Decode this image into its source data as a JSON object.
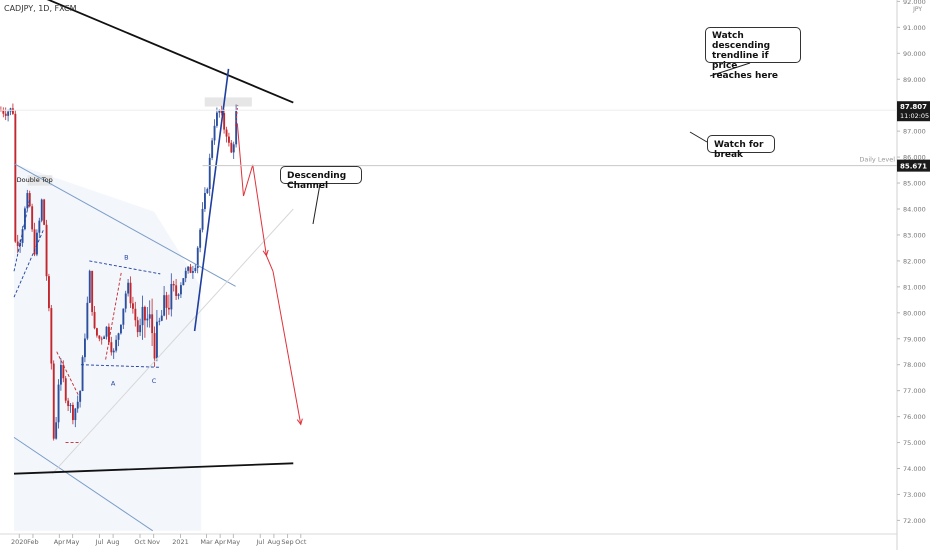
{
  "header": {
    "symbol_label": "CADJPY, 1D, FXCM"
  },
  "colors": {
    "bull": "#2c4f9e",
    "bear": "#c2272d",
    "channel": "#7a9cc8",
    "black": "#111111",
    "forecast": "#e0313a",
    "trend_blue": "#1f3fa0",
    "price_tag": "#1a1a1a"
  },
  "chart_data": {
    "type": "candlestick",
    "symbol": "CADJPY",
    "timeframe": "1D",
    "exchange": "FXCM",
    "currency_label": "JPY",
    "ylim": [
      71.6,
      92.4
    ],
    "y_ticks": [
      "72.000",
      "73.000",
      "74.000",
      "75.000",
      "76.000",
      "77.000",
      "78.000",
      "79.000",
      "80.000",
      "81.000",
      "82.000",
      "83.000",
      "84.000",
      "85.000",
      "86.000",
      "87.000",
      "88.000",
      "89.000",
      "90.000",
      "91.000",
      "92.000"
    ],
    "x_ticks": [
      "2020",
      "Feb",
      "Apr",
      "May",
      "Jul",
      "Aug",
      "Oct",
      "Nov",
      "2021",
      "Mar",
      "Apr",
      "May",
      "Jul",
      "Aug",
      "Sep",
      "Oct"
    ],
    "price_path": [
      {
        "date": "2019-12-20",
        "close": 82.7
      },
      {
        "date": "2020-01-02",
        "close": 82.9
      },
      {
        "date": "2020-01-10",
        "close": 83.8
      },
      {
        "date": "2020-01-20",
        "close": 84.6
      },
      {
        "date": "2020-01-27",
        "close": 83.2
      },
      {
        "date": "2020-02-03",
        "close": 82.4
      },
      {
        "date": "2020-02-12",
        "close": 83.3
      },
      {
        "date": "2020-02-21",
        "close": 84.6
      },
      {
        "date": "2020-03-02",
        "close": 81.0
      },
      {
        "date": "2020-03-10",
        "close": 79.0
      },
      {
        "date": "2020-03-16",
        "close": 75.5
      },
      {
        "date": "2020-03-19",
        "close": 74.6
      },
      {
        "date": "2020-03-26",
        "close": 77.2
      },
      {
        "date": "2020-04-03",
        "close": 77.8
      },
      {
        "date": "2020-04-15",
        "close": 76.7
      },
      {
        "date": "2020-04-30",
        "close": 76.1
      },
      {
        "date": "2020-05-15",
        "close": 76.8
      },
      {
        "date": "2020-05-29",
        "close": 79.6
      },
      {
        "date": "2020-06-08",
        "close": 81.7
      },
      {
        "date": "2020-06-15",
        "close": 79.3
      },
      {
        "date": "2020-06-29",
        "close": 79.0
      },
      {
        "date": "2020-07-15",
        "close": 79.4
      },
      {
        "date": "2020-07-31",
        "close": 78.4
      },
      {
        "date": "2020-08-14",
        "close": 79.5
      },
      {
        "date": "2020-08-31",
        "close": 81.1
      },
      {
        "date": "2020-09-15",
        "close": 80.0
      },
      {
        "date": "2020-09-25",
        "close": 79.2
      },
      {
        "date": "2020-10-09",
        "close": 79.8
      },
      {
        "date": "2020-10-23",
        "close": 79.6
      },
      {
        "date": "2020-11-02",
        "close": 78.7
      },
      {
        "date": "2020-11-16",
        "close": 79.8
      },
      {
        "date": "2020-11-27",
        "close": 80.3
      },
      {
        "date": "2020-12-09",
        "close": 80.6
      },
      {
        "date": "2020-12-21",
        "close": 80.7
      },
      {
        "date": "2021-01-04",
        "close": 81.4
      },
      {
        "date": "2021-01-18",
        "close": 81.6
      },
      {
        "date": "2021-02-01",
        "close": 81.9
      },
      {
        "date": "2021-02-15",
        "close": 83.5
      },
      {
        "date": "2021-03-01",
        "close": 85.0
      },
      {
        "date": "2021-03-15",
        "close": 87.3
      },
      {
        "date": "2021-03-29",
        "close": 87.8
      },
      {
        "date": "2021-04-06",
        "close": 87.2
      },
      {
        "date": "2021-04-16",
        "close": 86.9
      },
      {
        "date": "2021-04-22",
        "close": 85.9
      },
      {
        "date": "2021-04-30",
        "close": 86.7
      },
      {
        "date": "2021-05-06",
        "close": 87.8
      }
    ],
    "current_price": "87.807",
    "countdown": "11:02:05",
    "daily_level_price": "85.671",
    "daily_level_label": "Daily Level",
    "projection_path": [
      {
        "date": "2021-05-10",
        "price": 87.3
      },
      {
        "date": "2021-05-24",
        "price": 84.5
      },
      {
        "date": "2021-06-14",
        "price": 85.7
      },
      {
        "date": "2021-07-15",
        "price": 82.2
      },
      {
        "date": "2021-07-30",
        "price": 81.6
      },
      {
        "date": "2021-10-01",
        "price": 75.7
      }
    ],
    "annotations": {
      "double_top": "Double Top",
      "descending_channel": "Descending Channel",
      "point_a": "A",
      "point_b": "B",
      "point_c": "C",
      "watch_trendline": [
        "Watch descending",
        "trendline if price",
        "reaches here"
      ],
      "watch_break": "Watch for break"
    }
  }
}
